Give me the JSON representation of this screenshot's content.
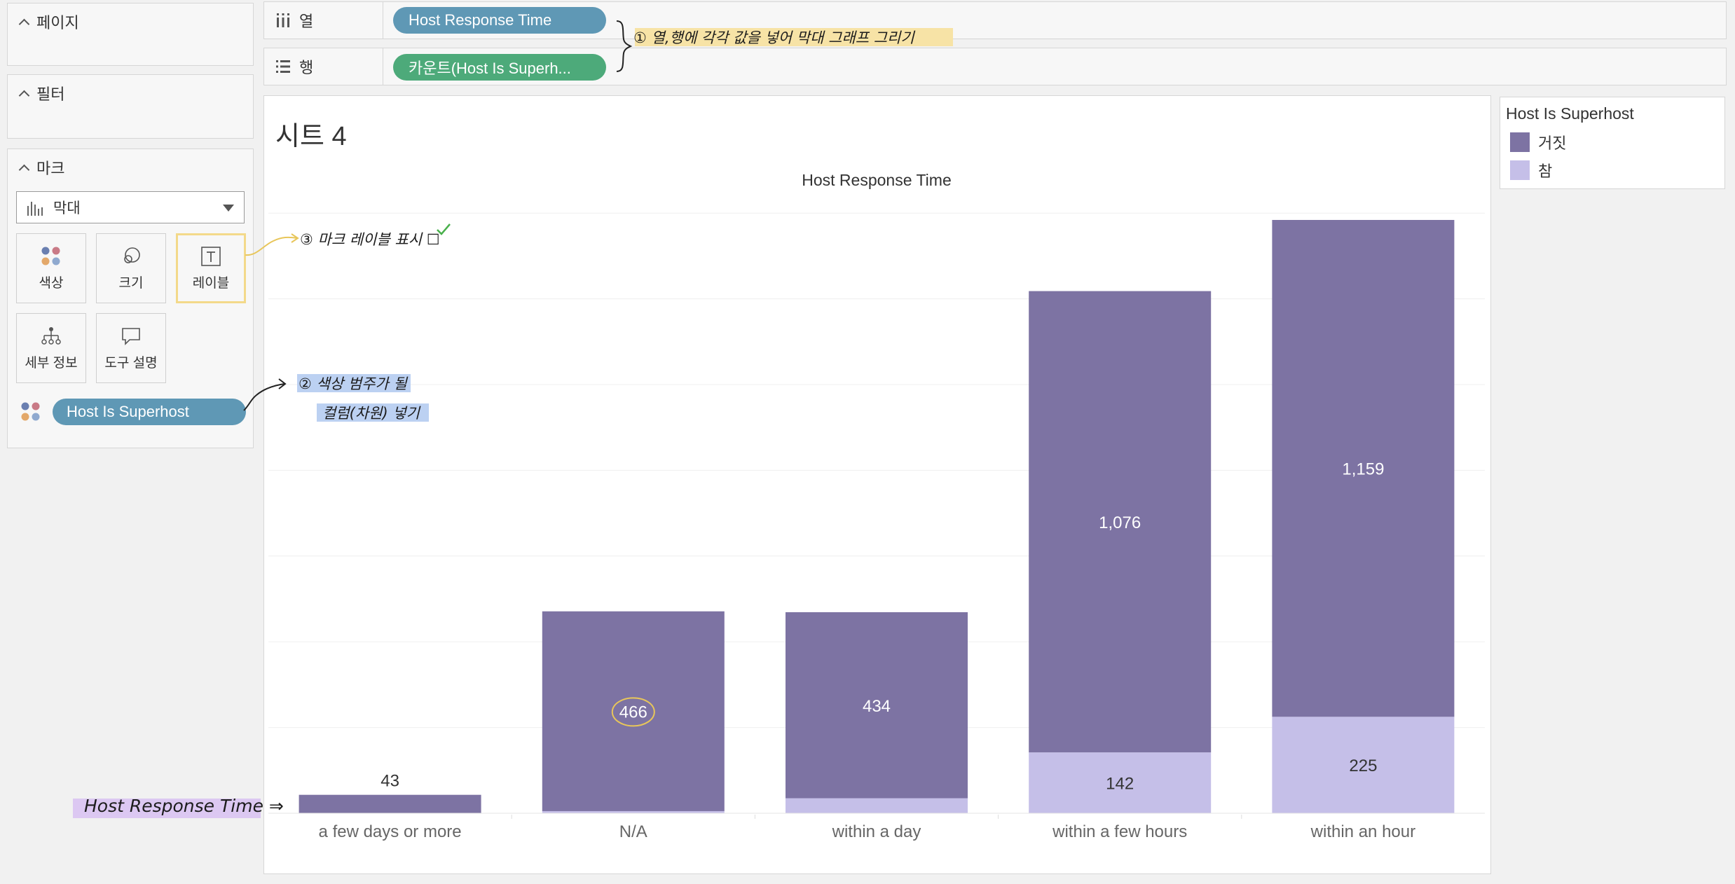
{
  "panels": {
    "pages": {
      "title": "페이지"
    },
    "filters": {
      "title": "필터"
    },
    "marks": {
      "title": "마크",
      "mark_type": "막대",
      "buttons": {
        "color": "색상",
        "size": "크기",
        "label": "레이블",
        "detail": "세부 정보",
        "tooltip": "도구 설명"
      },
      "color_field": "Host Is Superhost"
    }
  },
  "shelves": {
    "columns": {
      "label": "열",
      "field": "Host Response Time"
    },
    "rows": {
      "label": "행",
      "field": "카운트(Host Is Superh..."
    }
  },
  "sheet": {
    "title": "시트 4"
  },
  "legend": {
    "title": "Host Is Superhost",
    "items": [
      {
        "label": "거짓",
        "color": "#7d73a3"
      },
      {
        "label": "참",
        "color": "#c5bfe8"
      }
    ]
  },
  "chart_data": {
    "type": "bar",
    "stacked": true,
    "title": "Host Response Time",
    "categories": [
      "a few days or more",
      "N/A",
      "within a day",
      "within a few hours",
      "within an hour"
    ],
    "series": [
      {
        "name": "거짓",
        "values": [
          43,
          466,
          434,
          1076,
          1159
        ],
        "color": "#7d73a3"
      },
      {
        "name": "참",
        "values": [
          0,
          5,
          35,
          142,
          225
        ],
        "color": "#c5bfe8"
      }
    ],
    "labels": {
      "거짓": [
        "43",
        "466",
        "434",
        "1,076",
        "1,159"
      ],
      "참": [
        "",
        "",
        "",
        "142",
        "225"
      ]
    },
    "ylim": [
      0,
      1400
    ],
    "grid": true
  },
  "annotations": {
    "note1": "① 열,행에 각각 값을 넣어 막대 그래프 그리기",
    "note2_line1": "② 색상 범주가 될",
    "note2_line2": "컬럼(차원) 넣기",
    "note3": "③ 마크 레이블 표시 ☐",
    "axis_note": "Host Response Time ⇒"
  },
  "colors": {
    "pill_blue": "#5f98b5",
    "pill_green": "#4daa7a",
    "highlight_yellow": "#f7e3a6",
    "highlight_blue": "#bcd1f2",
    "highlight_purple": "#dcc8f2"
  }
}
